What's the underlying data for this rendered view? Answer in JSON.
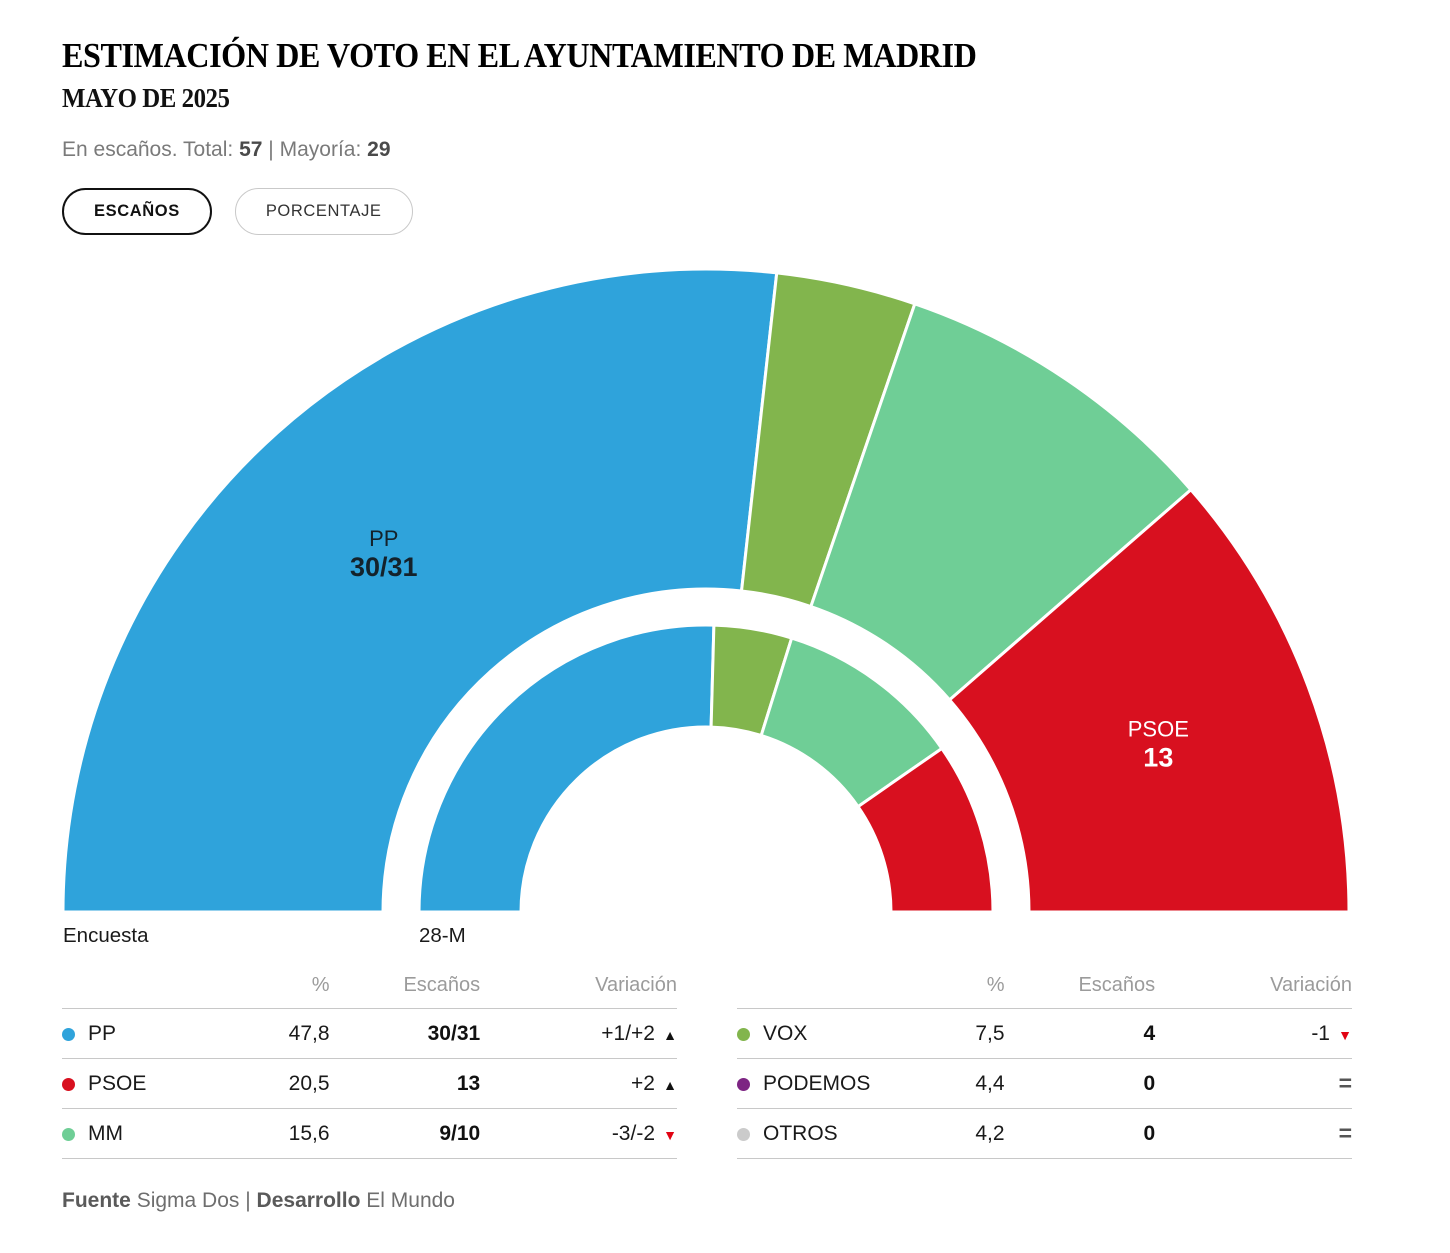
{
  "header": {
    "title": "ESTIMACIÓN DE VOTO EN EL AYUNTAMIENTO DE MADRID",
    "subtitle": "MAYO DE 2025",
    "meta_prefix": "En escaños. Total:",
    "total": "57",
    "meta_sep": "|",
    "majority_label": "Mayoría:",
    "majority": "29"
  },
  "toggles": [
    {
      "label": "ESCAÑOS",
      "active": true
    },
    {
      "label": "PORCENTAJE",
      "active": false
    }
  ],
  "chart_data": {
    "type": "half-donut hemicycle, two concentric rings",
    "total_seats": 57,
    "majority": 29,
    "legend_position": "bottom tables",
    "colors": {
      "PP": "#2FA3DB",
      "VOX": "#82B54D",
      "MM": "#6FCE96",
      "PSOE": "#D8101F",
      "PODEMOS": "#7D2583",
      "OTROS": "#CBCBCB"
    },
    "rings": [
      {
        "label": "Encuesta",
        "segments": [
          {
            "party": "PP",
            "value": 30.5,
            "display": "30/31",
            "show_label": true,
            "label_color": "#14222b"
          },
          {
            "party": "VOX",
            "value": 4,
            "display": "4",
            "show_label": false
          },
          {
            "party": "MM",
            "value": 9.5,
            "display": "9/10",
            "show_label": false
          },
          {
            "party": "PSOE",
            "value": 13,
            "display": "13",
            "show_label": true,
            "label_color": "#ffffff"
          }
        ]
      },
      {
        "label": "28-M",
        "segments": [
          {
            "party": "PP",
            "value": 29,
            "display": "29",
            "show_label": false
          },
          {
            "party": "VOX",
            "value": 5,
            "display": "5",
            "show_label": false
          },
          {
            "party": "MM",
            "value": 12,
            "display": "12",
            "show_label": false
          },
          {
            "party": "PSOE",
            "value": 11,
            "display": "11",
            "show_label": false
          }
        ]
      }
    ]
  },
  "table": {
    "headers": {
      "pct": "%",
      "seats": "Escaños",
      "variation": "Variación"
    },
    "left_rows": [
      {
        "party": "PP",
        "pct": "47,8",
        "seats": "30/31",
        "variation": "+1/+2",
        "trend": "up"
      },
      {
        "party": "PSOE",
        "pct": "20,5",
        "seats": "13",
        "variation": "+2",
        "trend": "up"
      },
      {
        "party": "MM",
        "pct": "15,6",
        "seats": "9/10",
        "variation": "-3/-2",
        "trend": "down"
      }
    ],
    "right_rows": [
      {
        "party": "VOX",
        "pct": "7,5",
        "seats": "4",
        "variation": "-1",
        "trend": "down"
      },
      {
        "party": "PODEMOS",
        "pct": "4,4",
        "seats": "0",
        "variation": "",
        "trend": "equal"
      },
      {
        "party": "OTROS",
        "pct": "4,2",
        "seats": "0",
        "variation": "",
        "trend": "equal"
      }
    ]
  },
  "footer": {
    "source_label": "Fuente",
    "source": "Sigma Dos",
    "sep": "|",
    "dev_label": "Desarrollo",
    "dev": "El Mundo"
  }
}
